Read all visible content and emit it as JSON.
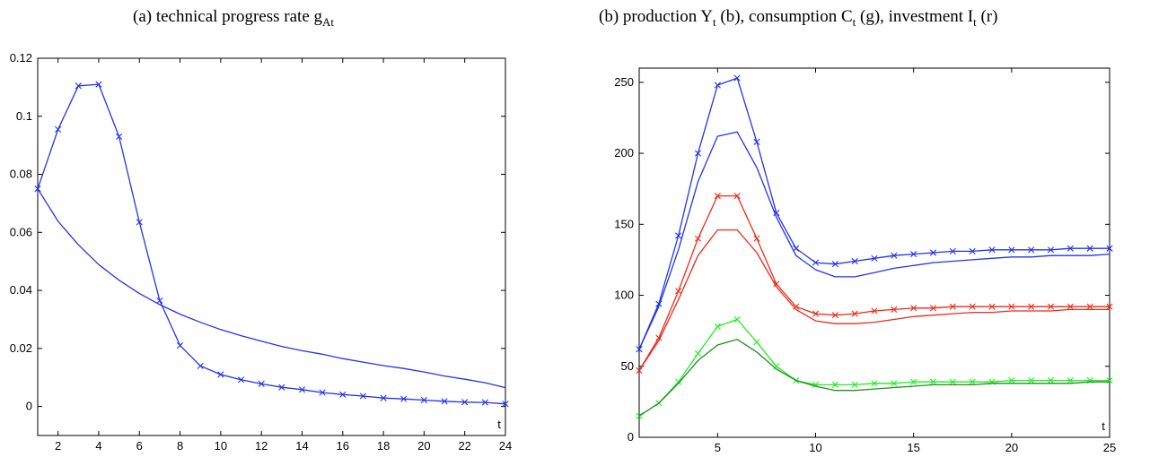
{
  "titles": {
    "a_prefix": "(a) technical progress rate g",
    "a_sub": "At",
    "b_part1": "(b) production Y",
    "b_sub1": "t",
    "b_part2": " (b), consumption C",
    "b_sub2": "t",
    "b_part3": " (g), investment I",
    "b_sub3": "t",
    "b_part4": " (r)"
  },
  "colors": {
    "blue": "#2233ee",
    "red": "#ee2a1a",
    "green_light": "#22ee22",
    "green_dark": "#1f8f1f",
    "axis": "#000000"
  },
  "chart_data": [
    {
      "type": "line",
      "title": "(a) technical progress rate gAt",
      "xlabel": "t",
      "ylabel": "",
      "xlim": [
        1,
        24
      ],
      "ylim": [
        -0.01,
        0.12
      ],
      "xticks": [
        2,
        4,
        6,
        8,
        10,
        12,
        14,
        16,
        18,
        20,
        22,
        24
      ],
      "yticks": [
        0,
        0.02,
        0.04,
        0.06,
        0.08,
        0.1,
        0.12
      ],
      "ytick_labels": [
        "0",
        "0.02",
        "0.04",
        "0.06",
        "0.08",
        "0.1",
        "0.12"
      ],
      "series": [
        {
          "color": "#2233ee",
          "marker": "x",
          "x": [
            1,
            2,
            3,
            4,
            5,
            6,
            7,
            8,
            9,
            10,
            11,
            12,
            13,
            14,
            15,
            16,
            17,
            18,
            19,
            20,
            21,
            22,
            23,
            24
          ],
          "values": [
            0.075,
            0.0955,
            0.1105,
            0.111,
            0.093,
            0.0635,
            0.0365,
            0.021,
            0.014,
            0.011,
            0.0092,
            0.0078,
            0.0066,
            0.0058,
            0.0048,
            0.0041,
            0.0036,
            0.0029,
            0.0026,
            0.0022,
            0.0018,
            0.0015,
            0.0014,
            0.0009
          ]
        },
        {
          "color": "#2233ee",
          "marker": "",
          "x": [
            1,
            2,
            3,
            4,
            5,
            6,
            7,
            8,
            9,
            10,
            11,
            12,
            13,
            14,
            15,
            16,
            17,
            18,
            19,
            20,
            21,
            22,
            23,
            24
          ],
          "values": [
            0.075,
            0.0638,
            0.0557,
            0.0489,
            0.0435,
            0.0389,
            0.0351,
            0.0318,
            0.029,
            0.0265,
            0.0244,
            0.0225,
            0.0207,
            0.0192,
            0.018,
            0.0165,
            0.0153,
            0.0141,
            0.0131,
            0.0119,
            0.0105,
            0.0094,
            0.0082,
            0.0065
          ]
        }
      ]
    },
    {
      "type": "line",
      "title": "(b) production Yt (b), consumption Ct (g), investment It (r)",
      "xlabel": "t",
      "ylabel": "",
      "xlim": [
        1,
        25
      ],
      "ylim": [
        0,
        260
      ],
      "xticks": [
        5,
        10,
        15,
        20,
        25
      ],
      "yticks": [
        0,
        50,
        100,
        150,
        200,
        250
      ],
      "ytick_labels": [
        "0",
        "50",
        "100",
        "150",
        "200",
        "250"
      ],
      "series": [
        {
          "color": "#2233ee",
          "marker": "x",
          "x": [
            1,
            2,
            3,
            4,
            5,
            6,
            7,
            8,
            9,
            10,
            11,
            12,
            13,
            14,
            15,
            16,
            17,
            18,
            19,
            20,
            21,
            22,
            23,
            24,
            25
          ],
          "values": [
            62,
            94,
            142,
            200,
            248,
            253,
            208,
            158,
            133,
            123,
            122,
            124,
            126,
            128,
            129,
            130,
            131,
            131,
            132,
            132,
            132,
            132,
            133,
            133,
            133
          ]
        },
        {
          "color": "#2233ee",
          "marker": "",
          "x": [
            1,
            2,
            3,
            4,
            5,
            6,
            7,
            8,
            9,
            10,
            11,
            12,
            13,
            14,
            15,
            16,
            17,
            18,
            19,
            20,
            21,
            22,
            23,
            24,
            25
          ],
          "values": [
            62,
            92,
            132,
            180,
            212,
            215,
            190,
            155,
            128,
            118,
            113,
            113,
            116,
            119,
            121,
            123,
            124,
            125,
            126,
            127,
            127,
            128,
            128,
            128,
            129
          ]
        },
        {
          "color": "#ee2a1a",
          "marker": "x",
          "x": [
            1,
            2,
            3,
            4,
            5,
            6,
            7,
            8,
            9,
            10,
            11,
            12,
            13,
            14,
            15,
            16,
            17,
            18,
            19,
            20,
            21,
            22,
            23,
            24,
            25
          ],
          "values": [
            47,
            70,
            103,
            140,
            170,
            170,
            140,
            108,
            92,
            87,
            86,
            87,
            89,
            90,
            91,
            91,
            92,
            92,
            92,
            92,
            92,
            92,
            92,
            92,
            92
          ]
        },
        {
          "color": "#ee2a1a",
          "marker": "",
          "x": [
            1,
            2,
            3,
            4,
            5,
            6,
            7,
            8,
            9,
            10,
            11,
            12,
            13,
            14,
            15,
            16,
            17,
            18,
            19,
            20,
            21,
            22,
            23,
            24,
            25
          ],
          "values": [
            47,
            68,
            97,
            128,
            146,
            146,
            130,
            106,
            90,
            82,
            80,
            80,
            81,
            83,
            85,
            86,
            87,
            88,
            88,
            89,
            89,
            89,
            90,
            90,
            90
          ]
        },
        {
          "color": "#22ee22",
          "marker": "x",
          "x": [
            1,
            2,
            3,
            4,
            5,
            6,
            7,
            8,
            9,
            10,
            11,
            12,
            13,
            14,
            15,
            16,
            17,
            18,
            19,
            20,
            21,
            22,
            23,
            24,
            25
          ],
          "values": [
            15,
            24,
            39,
            59,
            78,
            83,
            67,
            50,
            40,
            37,
            37,
            37,
            38,
            38,
            39,
            39,
            39,
            39,
            39,
            40,
            40,
            40,
            40,
            40,
            40
          ]
        },
        {
          "color": "#1f8f1f",
          "marker": "",
          "x": [
            1,
            2,
            3,
            4,
            5,
            6,
            7,
            8,
            9,
            10,
            11,
            12,
            13,
            14,
            15,
            16,
            17,
            18,
            19,
            20,
            21,
            22,
            23,
            24,
            25
          ],
          "values": [
            15,
            24,
            38,
            54,
            65,
            69,
            60,
            48,
            40,
            36,
            33,
            33,
            34,
            35,
            36,
            37,
            37,
            37,
            38,
            38,
            38,
            38,
            38,
            39,
            39
          ]
        }
      ]
    }
  ]
}
